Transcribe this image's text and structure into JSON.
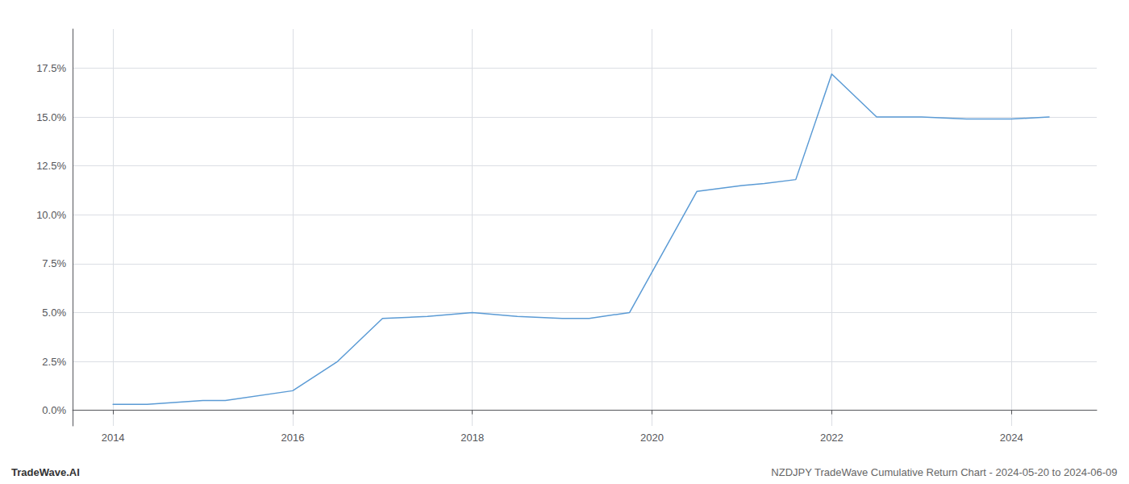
{
  "chart_data": {
    "type": "line",
    "x": [
      2014.0,
      2014.38,
      2015.0,
      2015.25,
      2016.0,
      2016.5,
      2017.0,
      2017.5,
      2018.0,
      2018.5,
      2019.0,
      2019.3,
      2019.75,
      2020.5,
      2021.0,
      2021.25,
      2021.6,
      2022.0,
      2022.5,
      2023.0,
      2023.5,
      2024.0,
      2024.42
    ],
    "values": [
      0.003,
      0.003,
      0.005,
      0.005,
      0.01,
      0.025,
      0.047,
      0.048,
      0.05,
      0.048,
      0.047,
      0.047,
      0.05,
      0.112,
      0.115,
      0.116,
      0.118,
      0.172,
      0.15,
      0.15,
      0.149,
      0.149,
      0.15
    ],
    "color": "#5b9bd5",
    "xlim": [
      2013.55,
      2024.95
    ],
    "ylim": [
      -0.008,
      0.195
    ],
    "xticks": [
      2014,
      2016,
      2018,
      2020,
      2022,
      2024
    ],
    "yticks": [
      {
        "value": 0.0,
        "label": "0.0%"
      },
      {
        "value": 0.025,
        "label": "2.5%"
      },
      {
        "value": 0.05,
        "label": "5.0%"
      },
      {
        "value": 0.075,
        "label": "7.5%"
      },
      {
        "value": 0.1,
        "label": "10.0%"
      },
      {
        "value": 0.125,
        "label": "12.5%"
      },
      {
        "value": 0.15,
        "label": "15.0%"
      },
      {
        "value": 0.175,
        "label": "17.5%"
      }
    ],
    "grid": true,
    "annotations": [
      "TradeWave.AI",
      "NZDJPY TradeWave Cumulative Return Chart - 2024-05-20 to 2024-06-09"
    ]
  }
}
